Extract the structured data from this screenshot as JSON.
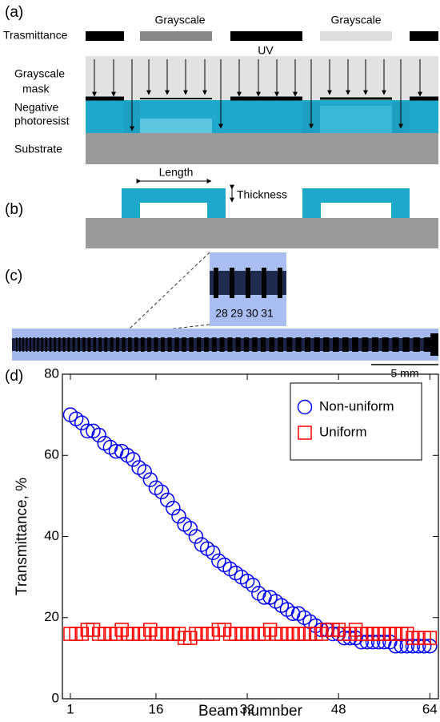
{
  "panels": {
    "a": "(a)",
    "b": "(b)",
    "c": "(c)",
    "d": "(d)"
  },
  "diagram_a": {
    "grayscale_labels": [
      "Grayscale",
      "Grayscale"
    ],
    "transmittance_label": "Trasmittance",
    "uv": "UV",
    "layers": [
      "Grayscale",
      "mask",
      "Negative",
      "photoresist",
      "Substrate"
    ]
  },
  "diagram_b": {
    "length": "Length",
    "thickness": "Thickness"
  },
  "diagram_c": {
    "beam_labels": [
      "28",
      "29",
      "30",
      "31"
    ],
    "scale": "5 mm"
  },
  "chart_data": {
    "type": "scatter",
    "x_label": "Beam numnber",
    "y_label": "Transmittance, %",
    "xlim": [
      -0.4,
      65.5
    ],
    "ylim": [
      0,
      80
    ],
    "xticks": [
      1,
      16,
      32,
      48,
      64
    ],
    "yticks": [
      0,
      20,
      40,
      60,
      80
    ],
    "legend": "upper right",
    "x": [
      1,
      2,
      3,
      4,
      5,
      6,
      7,
      8,
      9,
      10,
      11,
      12,
      13,
      14,
      15,
      16,
      17,
      18,
      19,
      20,
      21,
      22,
      23,
      24,
      25,
      26,
      27,
      28,
      29,
      30,
      31,
      32,
      33,
      34,
      35,
      36,
      37,
      38,
      39,
      40,
      41,
      42,
      43,
      44,
      45,
      46,
      47,
      48,
      49,
      50,
      51,
      52,
      53,
      54,
      55,
      56,
      57,
      58,
      59,
      60,
      61,
      62,
      63,
      64
    ],
    "series": [
      {
        "name": "Non-uniform",
        "color": "#0000ff",
        "marker": "circle",
        "values": [
          70,
          69,
          68,
          66,
          66,
          65,
          63,
          62,
          61,
          61,
          60,
          59,
          57,
          56,
          54,
          52,
          51,
          49,
          47,
          45,
          43,
          42,
          40,
          38,
          37,
          36,
          34,
          33,
          32,
          31,
          30,
          29,
          28,
          26,
          25,
          25,
          24,
          23,
          22,
          21,
          21,
          20,
          19,
          18,
          17,
          17,
          16,
          16,
          15,
          15,
          15,
          14,
          14,
          14,
          14,
          14,
          14,
          13,
          13,
          13,
          13,
          13,
          13,
          13
        ]
      },
      {
        "name": "Uniform",
        "color": "#ff0000",
        "marker": "square",
        "values": [
          16,
          16,
          16,
          17,
          17,
          16,
          16,
          16,
          16,
          17,
          16,
          16,
          16,
          16,
          17,
          16,
          16,
          16,
          16,
          16,
          15,
          15,
          16,
          16,
          16,
          16,
          17,
          17,
          16,
          16,
          16,
          16,
          16,
          16,
          16,
          17,
          16,
          16,
          16,
          16,
          16,
          16,
          16,
          16,
          16,
          17,
          17,
          17,
          16,
          16,
          17,
          16,
          16,
          16,
          16,
          16,
          16,
          16,
          16,
          16,
          15,
          15,
          15,
          15
        ]
      }
    ]
  }
}
